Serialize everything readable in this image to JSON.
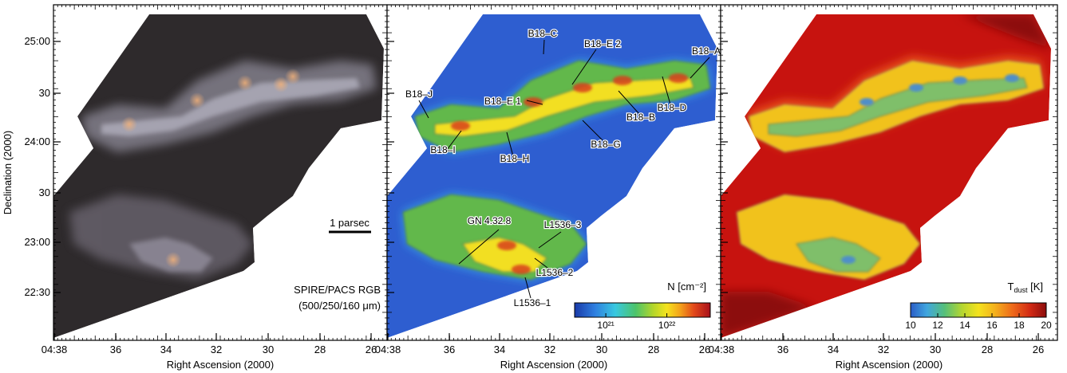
{
  "chart_data": [
    {
      "type": "heatmap",
      "panel": "rgb",
      "xlabel": "Right Ascension (2000)",
      "ylabel": "Declination (2000)",
      "x_ticks": [
        "04:38",
        "36",
        "34",
        "32",
        "30",
        "28",
        "26"
      ],
      "y_ticks": [
        "25:00",
        "30",
        "24:00",
        "30",
        "23:00",
        "22:30"
      ],
      "caption_line1": "SPIRE/PACS RGB",
      "caption_line2": "(500/250/160 μm)",
      "scalebar_label": "1 parsec",
      "colors": {
        "background": "#2e2a2c",
        "filament": "#b9b8c6",
        "warm": "#d8a67a"
      }
    },
    {
      "type": "heatmap",
      "panel": "column-density",
      "xlabel": "Right Ascension (2000)",
      "x_ticks": [
        "04:38",
        "36",
        "34",
        "32",
        "30",
        "28",
        "26"
      ],
      "colorbar_label": "N [cm⁻²]",
      "colorbar_ticks": [
        "10²¹",
        "10²²"
      ],
      "colorbar_scale": "log",
      "annotations": [
        {
          "label": "B18–C"
        },
        {
          "label": "B18–E 2"
        },
        {
          "label": "B18–A"
        },
        {
          "label": "B18–E 1"
        },
        {
          "label": "B18–J"
        },
        {
          "label": "B18–D"
        },
        {
          "label": "B18–B"
        },
        {
          "label": "B18–G"
        },
        {
          "label": "B18–I"
        },
        {
          "label": "B18–H"
        },
        {
          "label": "GN 4.32.8"
        },
        {
          "label": "L1536–3"
        },
        {
          "label": "L1536–2"
        },
        {
          "label": "L1536–1"
        }
      ],
      "colors": {
        "low": "#2f62d6",
        "mid": "#5fb84c",
        "high": "#c81e1e"
      }
    },
    {
      "type": "heatmap",
      "panel": "dust-temperature",
      "xlabel": "Right Ascension (2000)",
      "x_ticks": [
        "04:38",
        "36",
        "34",
        "32",
        "30",
        "28",
        "26"
      ],
      "colorbar_label_main": "T",
      "colorbar_label_sub": "dust",
      "colorbar_label_unit": " [K]",
      "colorbar_ticks": [
        10,
        12,
        14,
        16,
        18,
        20
      ],
      "colorbar_range": [
        10,
        20
      ],
      "colors": {
        "hot": "#c7130f",
        "warm": "#ee5a1a",
        "cool": "#f1c21c",
        "cold": "#4f8fc8"
      }
    }
  ]
}
